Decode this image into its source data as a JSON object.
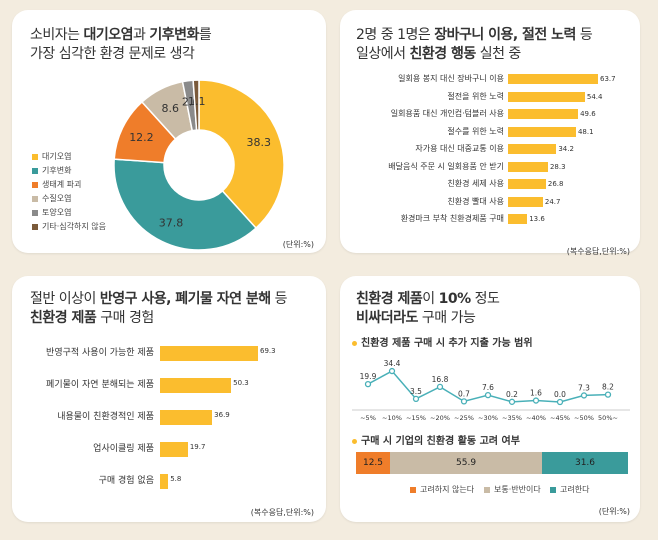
{
  "colors": {
    "yellow": "#fbbd2e",
    "teal": "#3a9b9b",
    "orange": "#ef7d2a",
    "beige": "#c9bba6",
    "gray": "#8a8a8a",
    "brown": "#7a5a3a",
    "line": "#49b0b8"
  },
  "panel1": {
    "title_l1_a": "소비자는 ",
    "title_l1_b": "대기오염",
    "title_l1_c": "과 ",
    "title_l1_d": "기후변화",
    "title_l1_e": "를",
    "title_l2": "가장 심각한 환경 문제로 생각",
    "unit": "(단위:%)"
  },
  "panel2": {
    "title_l1_a": "2명 중 1명은 ",
    "title_l1_b": "장바구니 이용, 절전 노력",
    "title_l1_c": " 등",
    "title_l2_a": "일상에서 ",
    "title_l2_b": "친환경 행동",
    "title_l2_c": " 실천 중",
    "unit": "(복수응답,단위:%)"
  },
  "panel3": {
    "title_l1_a": "절반 이상이 ",
    "title_l1_b": "반영구 사용, 폐기물 자연 분해",
    "title_l1_c": " 등",
    "title_l2_a": "친환경 제품",
    "title_l2_b": " 구매 경험",
    "unit": "(복수응답,단위:%)"
  },
  "panel4": {
    "title_l1_a": "친환경 제품",
    "title_l1_b": "이 ",
    "title_l1_c": "10%",
    "title_l1_d": " 정도",
    "title_l2_a": "비싸더라도",
    "title_l2_b": " 구매 가능",
    "sub1": "친환경 제품 구매 시 추가 지출 가능 범위",
    "sub2": "구매 시 기업의 친환경 활동 고려 여부",
    "unit": "(단위:%)"
  },
  "chart_data": [
    {
      "type": "pie",
      "title": "소비자는 대기오염과 기후변화를 가장 심각한 환경 문제로 생각",
      "unit": "%",
      "categories": [
        "대기오염",
        "기후변화",
        "생태계 파괴",
        "수질오염",
        "토양오염",
        "기타·심각하지 않음"
      ],
      "values": [
        38.3,
        37.8,
        12.2,
        8.6,
        2.0,
        1.1
      ],
      "value_labels": [
        "38.3",
        "37.8",
        "12.2",
        "8.6",
        "2.0",
        "1.1"
      ],
      "legend": "left"
    },
    {
      "type": "bar",
      "orientation": "horizontal",
      "title": "2명 중 1명은 장바구니 이용, 절전 노력 등 일상에서 친환경 행동 실천 중",
      "unit": "복수응답, %",
      "categories": [
        "일회용 봉지 대신 장바구니 이용",
        "절전을 위한 노력",
        "일회용품 대신 개인컵·텀블러 사용",
        "절수를 위한 노력",
        "자가용 대신 대중교통 이용",
        "배달음식 주문 시 일회용품 안 받기",
        "친환경 세제 사용",
        "친환경 빨대 사용",
        "환경마크 부착 친환경제품 구매"
      ],
      "values": [
        63.7,
        54.4,
        49.6,
        48.1,
        34.2,
        28.3,
        26.8,
        24.7,
        13.6
      ],
      "value_labels": [
        "63.7",
        "54.4",
        "49.6",
        "48.1",
        "34.2",
        "28.3",
        "26.8",
        "24.7",
        "13.6"
      ]
    },
    {
      "type": "bar",
      "orientation": "horizontal",
      "title": "절반 이상이 반영구 사용, 폐기물 자연 분해 등 친환경 제품 구매 경험",
      "unit": "복수응답, %",
      "categories": [
        "반영구적 사용이 가능한 제품",
        "폐기물이 자연 분해되는 제품",
        "내용물이 친환경적인 제품",
        "업사이클링 제품",
        "구매 경험 없음"
      ],
      "values": [
        69.3,
        50.3,
        36.9,
        19.7,
        5.8
      ],
      "value_labels": [
        "69.3",
        "50.3",
        "36.9",
        "19.7",
        "5.8"
      ]
    },
    {
      "type": "line",
      "title": "친환경 제품 구매 시 추가 지출 가능 범위",
      "unit": "%",
      "categories": [
        "~5%",
        "~10%",
        "~15%",
        "~20%",
        "~25%",
        "~30%",
        "~35%",
        "~40%",
        "~45%",
        "~50%",
        "50%~"
      ],
      "values": [
        19.9,
        34.4,
        3.5,
        16.8,
        0.7,
        7.6,
        0.2,
        1.6,
        0.0,
        7.3,
        8.2
      ],
      "value_labels": [
        "19.9",
        "34.4",
        "3.5",
        "16.8",
        "0.7",
        "7.6",
        "0.2",
        "1.6",
        "0.0",
        "7.3",
        "8.2"
      ]
    },
    {
      "type": "bar",
      "orientation": "stacked-horizontal",
      "title": "구매 시 기업의 친환경 활동 고려 여부",
      "unit": "%",
      "categories": [
        "고려하지 않는다",
        "보통·반반이다",
        "고려한다"
      ],
      "values": [
        12.5,
        55.9,
        31.6
      ],
      "value_labels": [
        "12.5",
        "55.9",
        "31.6"
      ],
      "legend": "bottom"
    }
  ]
}
